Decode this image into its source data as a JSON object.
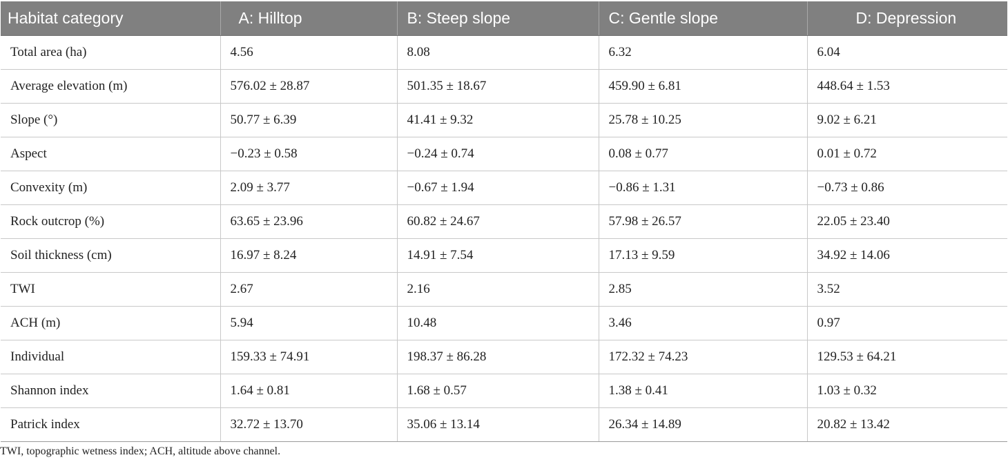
{
  "table": {
    "headers": [
      "Habitat category",
      "A: Hilltop",
      "B: Steep slope",
      "C: Gentle slope",
      "D: Depression"
    ],
    "rows": [
      [
        "Total area (ha)",
        "4.56",
        "8.08",
        "6.32",
        "6.04"
      ],
      [
        "Average elevation (m)",
        "576.02 ± 28.87",
        "501.35 ± 18.67",
        "459.90 ± 6.81",
        "448.64 ± 1.53"
      ],
      [
        "Slope (°)",
        "50.77 ± 6.39",
        "41.41 ± 9.32",
        "25.78 ± 10.25",
        "9.02 ± 6.21"
      ],
      [
        "Aspect",
        "−0.23 ± 0.58",
        "−0.24 ± 0.74",
        "0.08 ± 0.77",
        "0.01 ± 0.72"
      ],
      [
        "Convexity (m)",
        "2.09 ± 3.77",
        "−0.67 ± 1.94",
        "−0.86 ± 1.31",
        "−0.73 ± 0.86"
      ],
      [
        "Rock outcrop (%)",
        "63.65 ± 23.96",
        "60.82 ± 24.67",
        "57.98 ± 26.57",
        "22.05 ± 23.40"
      ],
      [
        "Soil thickness (cm)",
        "16.97 ± 8.24",
        "14.91 ± 7.54",
        "17.13 ± 9.59",
        "34.92 ± 14.06"
      ],
      [
        "TWI",
        "2.67",
        "2.16",
        "2.85",
        "3.52"
      ],
      [
        "ACH (m)",
        "5.94",
        "10.48",
        "3.46",
        "0.97"
      ],
      [
        "Individual",
        "159.33 ± 74.91",
        "198.37 ± 86.28",
        "172.32 ± 74.23",
        "129.53 ± 64.21"
      ],
      [
        "Shannon index",
        "1.64 ± 0.81",
        "1.68 ± 0.57",
        "1.38 ± 0.41",
        "1.03 ± 0.32"
      ],
      [
        "Patrick index",
        "32.72 ± 13.70",
        "35.06 ± 13.14",
        "26.34 ± 14.89",
        "20.82 ± 13.42"
      ]
    ]
  },
  "footnote": "TWI, topographic wetness index; ACH, altitude above channel.",
  "colors": {
    "header_bg": "#808080",
    "header_text": "#ffffff",
    "grid_line": "#c8c8c8"
  }
}
